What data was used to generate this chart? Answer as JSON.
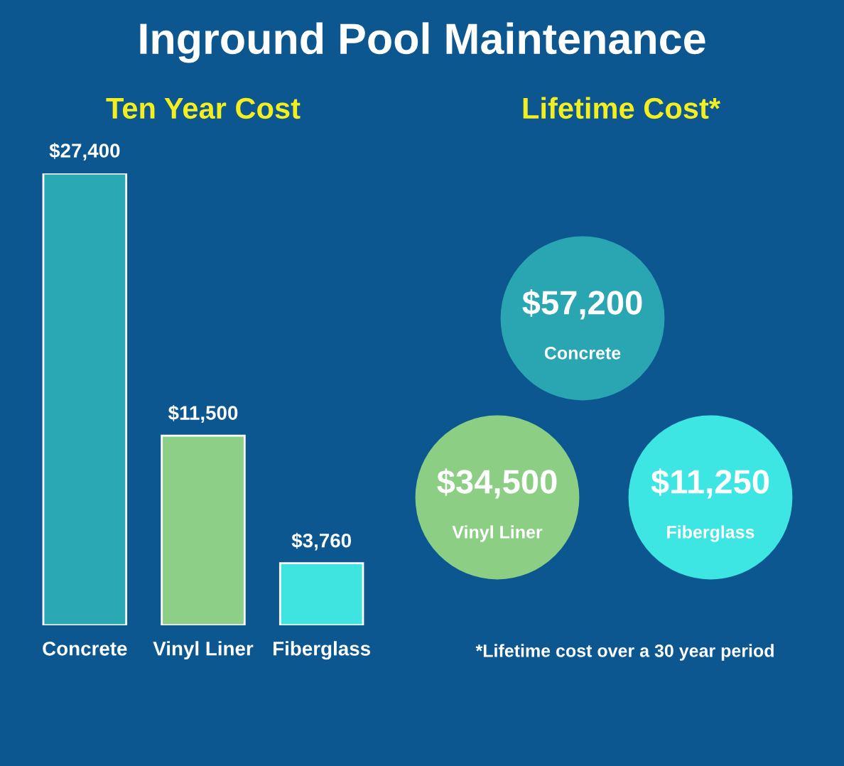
{
  "chart_data": [
    {
      "type": "bar",
      "title": "Inground Pool Maintenance",
      "subtitle": "Ten Year Cost",
      "categories": [
        "Concrete",
        "Vinyl Liner",
        "Fiberglass"
      ],
      "values": [
        27400,
        11500,
        3760
      ],
      "colors": [
        "#2aa9b5",
        "#8ecf88",
        "#3fe3e0"
      ],
      "value_labels": [
        "$27,400",
        "$11,500",
        "$3,760"
      ]
    },
    {
      "type": "other",
      "title": "Lifetime Cost*",
      "categories": [
        "Concrete",
        "Vinyl Liner",
        "Fiberglass"
      ],
      "values": [
        57200,
        34500,
        11250
      ],
      "colors": [
        "#2aa6b3",
        "#8ccf84",
        "#3ee6e3"
      ],
      "value_labels": [
        "$57,200",
        "$34,500",
        "$11,250"
      ],
      "annotations": [
        "*Lifetime cost over a 30 year period"
      ]
    }
  ]
}
